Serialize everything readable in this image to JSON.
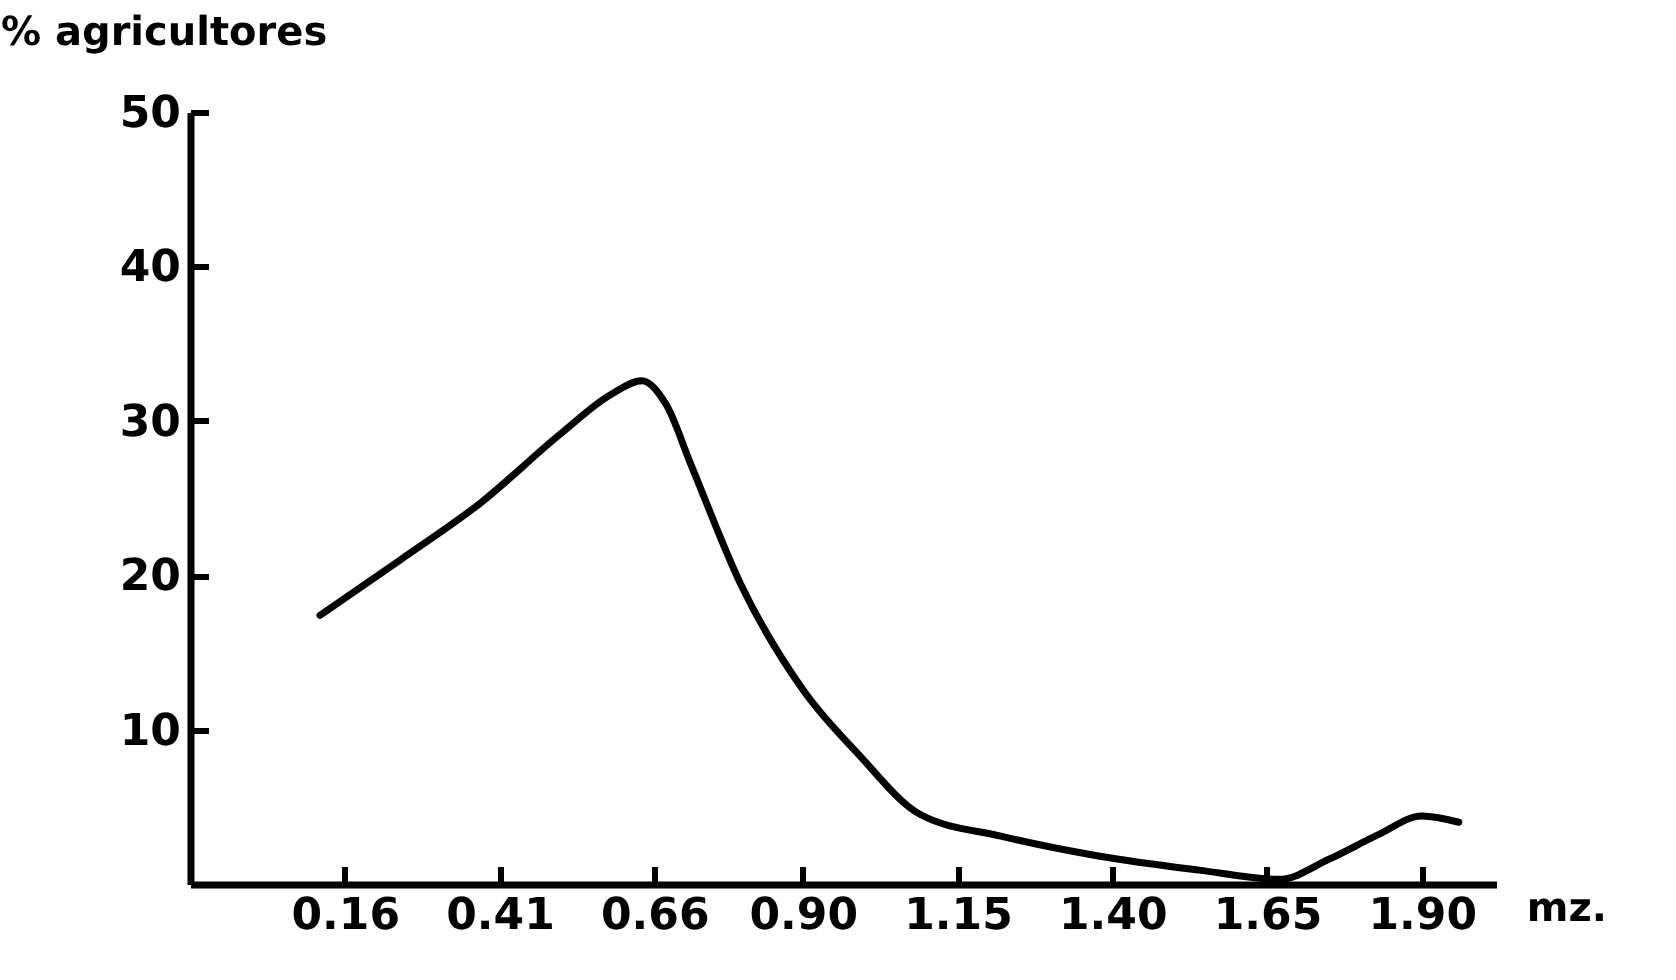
{
  "chart_data": {
    "type": "line",
    "ylabel": "% agricultores",
    "xlabel": "mz.",
    "x": [
      0.12,
      0.25,
      0.38,
      0.51,
      0.59,
      0.64,
      0.68,
      0.72,
      0.8,
      0.9,
      0.99,
      1.09,
      1.22,
      1.38,
      1.54,
      1.67,
      1.75,
      1.83,
      1.9,
      1.96
    ],
    "series": [
      {
        "color": "#000000",
        "values": [
          17.4,
          21.0,
          24.7,
          29.2,
          31.7,
          32.6,
          31.0,
          27.1,
          19.4,
          12.6,
          8.4,
          4.5,
          3.1,
          1.8,
          0.9,
          0.3,
          1.6,
          3.2,
          4.4,
          4.0
        ]
      }
    ],
    "xlim": [
      -0.09,
      2.02
    ],
    "xticks": [
      {
        "value": 0.16,
        "label": "0.16"
      },
      {
        "value": 0.41,
        "label": "0.41"
      },
      {
        "value": 0.66,
        "label": "0.66"
      },
      {
        "value": 0.9,
        "label": "0.90"
      },
      {
        "value": 1.15,
        "label": "1.15"
      },
      {
        "value": 1.4,
        "label": "1.40"
      },
      {
        "value": 1.65,
        "label": "1.65"
      },
      {
        "value": 1.9,
        "label": "1.90"
      }
    ],
    "ylim": [
      0,
      50
    ],
    "yticks": [
      10,
      20,
      30,
      40,
      50
    ],
    "grid": false,
    "marker": "none",
    "line_style": "solid"
  }
}
